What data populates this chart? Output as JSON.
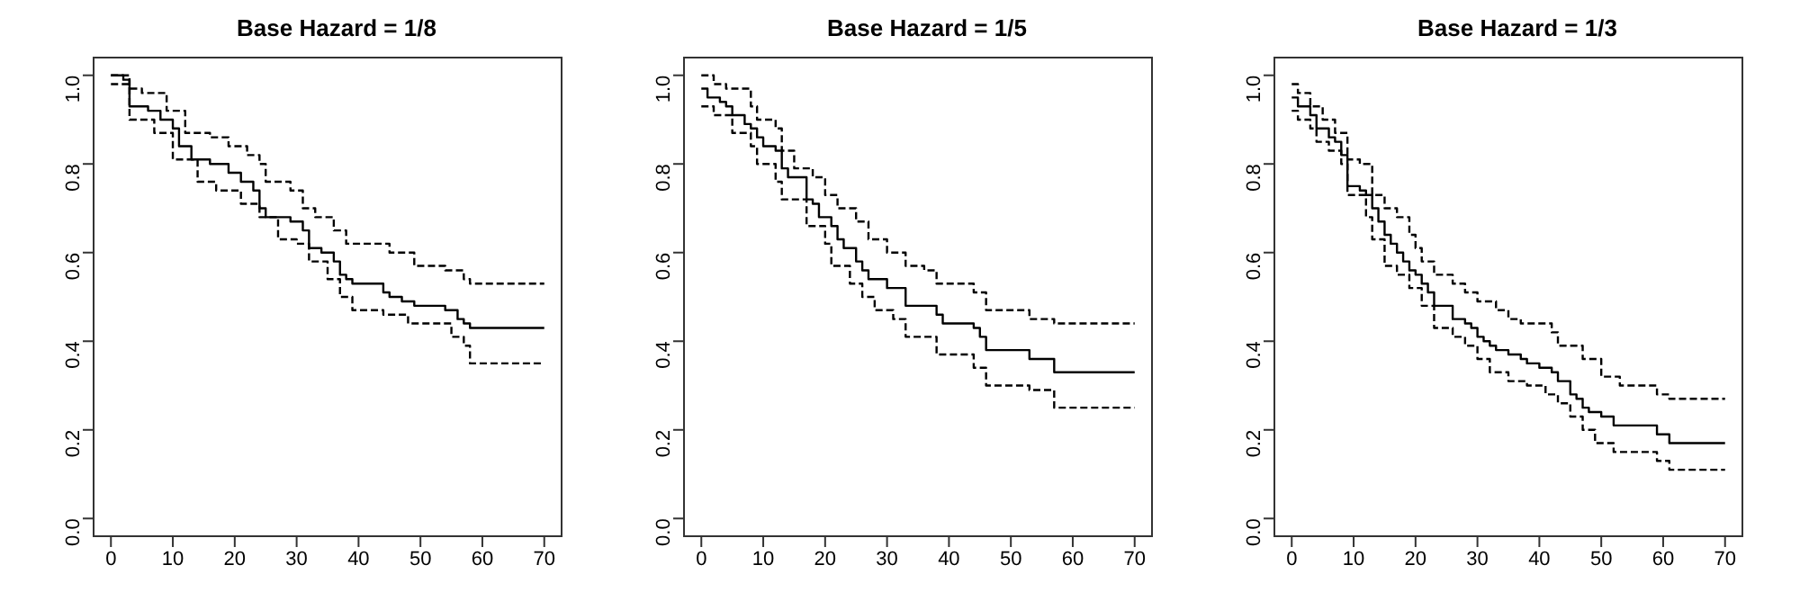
{
  "chart_data": [
    {
      "type": "step",
      "title": "Base Hazard = 1/8",
      "xlim": [
        -2.8,
        72.8
      ],
      "ylim": [
        -0.04,
        1.04
      ],
      "xticks": [
        0,
        10,
        20,
        30,
        40,
        50,
        60,
        70
      ],
      "yticks": [
        {
          "value": 0,
          "label": "0.0"
        },
        {
          "value": 0.2,
          "label": "0.2"
        },
        {
          "value": 0.4,
          "label": "0.4"
        },
        {
          "value": 0.6,
          "label": "0.6"
        },
        {
          "value": 0.8,
          "label": "0.8"
        },
        {
          "value": 1,
          "label": "1.0"
        }
      ],
      "grid": false,
      "legend": false,
      "marker": "none",
      "series": [
        {
          "color": "#000000",
          "line_style": "solid",
          "x": [
            0,
            2,
            3,
            6,
            8,
            10,
            11,
            13,
            16,
            19,
            21,
            23,
            24,
            25,
            29,
            31,
            32,
            34,
            36,
            37,
            38,
            39,
            44,
            45,
            47,
            49,
            54,
            56,
            57,
            58,
            70
          ],
          "values": [
            1,
            0.99,
            0.93,
            0.92,
            0.9,
            0.88,
            0.84,
            0.81,
            0.8,
            0.78,
            0.76,
            0.74,
            0.7,
            0.68,
            0.67,
            0.65,
            0.61,
            0.6,
            0.58,
            0.55,
            0.54,
            0.53,
            0.51,
            0.5,
            0.49,
            0.48,
            0.47,
            0.45,
            0.44,
            0.43,
            0.43
          ]
        },
        {
          "color": "#000000",
          "line_style": "dashed",
          "x": [
            0,
            3,
            5,
            9,
            12,
            16,
            19,
            22,
            24,
            25,
            29,
            31,
            33,
            36,
            38,
            45,
            49,
            54,
            57,
            58,
            70
          ],
          "values": [
            1,
            0.97,
            0.96,
            0.92,
            0.87,
            0.86,
            0.84,
            0.82,
            0.8,
            0.76,
            0.74,
            0.7,
            0.68,
            0.65,
            0.62,
            0.6,
            0.57,
            0.56,
            0.54,
            0.53,
            0.53
          ]
        },
        {
          "color": "#000000",
          "line_style": "dashed",
          "x": [
            0,
            3,
            7,
            10,
            14,
            17,
            21,
            24,
            27,
            30,
            32,
            35,
            37,
            39,
            44,
            48,
            55,
            57,
            58,
            70
          ],
          "values": [
            0.98,
            0.9,
            0.87,
            0.81,
            0.76,
            0.74,
            0.71,
            0.68,
            0.63,
            0.62,
            0.58,
            0.54,
            0.5,
            0.47,
            0.46,
            0.44,
            0.41,
            0.39,
            0.35,
            0.35
          ]
        }
      ]
    },
    {
      "type": "step",
      "title": "Base Hazard = 1/5",
      "xlim": [
        -2.8,
        72.8
      ],
      "ylim": [
        -0.04,
        1.04
      ],
      "xticks": [
        0,
        10,
        20,
        30,
        40,
        50,
        60,
        70
      ],
      "yticks": [
        {
          "value": 0,
          "label": "0.0"
        },
        {
          "value": 0.2,
          "label": "0.2"
        },
        {
          "value": 0.4,
          "label": "0.4"
        },
        {
          "value": 0.6,
          "label": "0.6"
        },
        {
          "value": 0.8,
          "label": "0.8"
        },
        {
          "value": 1,
          "label": "1.0"
        }
      ],
      "grid": false,
      "legend": false,
      "marker": "none",
      "series": [
        {
          "color": "#000000",
          "line_style": "solid",
          "x": [
            0,
            1,
            3,
            4,
            5,
            7,
            8,
            9,
            10,
            12,
            13,
            14,
            17,
            18,
            19,
            21,
            22,
            23,
            25,
            26,
            27,
            30,
            33,
            34,
            38,
            39,
            44,
            45,
            46,
            53,
            57,
            70
          ],
          "values": [
            0.97,
            0.95,
            0.94,
            0.93,
            0.91,
            0.89,
            0.88,
            0.86,
            0.84,
            0.83,
            0.79,
            0.77,
            0.72,
            0.71,
            0.68,
            0.66,
            0.63,
            0.61,
            0.58,
            0.56,
            0.54,
            0.52,
            0.48,
            0.48,
            0.46,
            0.44,
            0.43,
            0.41,
            0.38,
            0.36,
            0.33,
            0.33
          ]
        },
        {
          "color": "#000000",
          "line_style": "dashed",
          "x": [
            0,
            2,
            4,
            8,
            9,
            12,
            13,
            15,
            18,
            20,
            22,
            25,
            27,
            30,
            33,
            36,
            38,
            44,
            46,
            53,
            57,
            70
          ],
          "values": [
            1,
            0.98,
            0.97,
            0.93,
            0.9,
            0.88,
            0.83,
            0.79,
            0.77,
            0.73,
            0.7,
            0.67,
            0.63,
            0.6,
            0.57,
            0.56,
            0.53,
            0.51,
            0.47,
            0.45,
            0.44,
            0.44
          ]
        },
        {
          "color": "#000000",
          "line_style": "dashed",
          "x": [
            0,
            2,
            5,
            8,
            9,
            12,
            13,
            17,
            20,
            21,
            24,
            26,
            28,
            31,
            33,
            38,
            41,
            44,
            46,
            53,
            57,
            70
          ],
          "values": [
            0.93,
            0.91,
            0.87,
            0.84,
            0.8,
            0.76,
            0.72,
            0.66,
            0.62,
            0.57,
            0.53,
            0.5,
            0.47,
            0.45,
            0.41,
            0.37,
            0.37,
            0.34,
            0.3,
            0.29,
            0.25,
            0.25
          ]
        }
      ]
    },
    {
      "type": "step",
      "title": "Base Hazard = 1/3",
      "xlim": [
        -2.8,
        72.8
      ],
      "ylim": [
        -0.04,
        1.04
      ],
      "xticks": [
        0,
        10,
        20,
        30,
        40,
        50,
        60,
        70
      ],
      "yticks": [
        {
          "value": 0,
          "label": "0.0"
        },
        {
          "value": 0.2,
          "label": "0.2"
        },
        {
          "value": 0.4,
          "label": "0.4"
        },
        {
          "value": 0.6,
          "label": "0.6"
        },
        {
          "value": 0.8,
          "label": "0.8"
        },
        {
          "value": 1,
          "label": "1.0"
        }
      ],
      "grid": false,
      "legend": false,
      "marker": "none",
      "series": [
        {
          "color": "#000000",
          "line_style": "solid",
          "x": [
            0,
            1,
            3,
            4,
            6,
            7,
            8,
            9,
            11,
            12,
            13,
            14,
            15,
            16,
            17,
            18,
            19,
            20,
            21,
            22,
            23,
            26,
            28,
            29,
            30,
            31,
            32,
            33,
            35,
            37,
            38,
            40,
            42,
            43,
            45,
            46,
            47,
            48,
            50,
            52,
            59,
            61,
            70
          ],
          "values": [
            0.95,
            0.93,
            0.91,
            0.88,
            0.86,
            0.85,
            0.82,
            0.75,
            0.74,
            0.73,
            0.7,
            0.67,
            0.64,
            0.62,
            0.6,
            0.58,
            0.56,
            0.55,
            0.53,
            0.51,
            0.48,
            0.45,
            0.44,
            0.43,
            0.41,
            0.4,
            0.39,
            0.38,
            0.37,
            0.36,
            0.35,
            0.34,
            0.33,
            0.31,
            0.28,
            0.27,
            0.25,
            0.24,
            0.23,
            0.21,
            0.19,
            0.17,
            0.17
          ]
        },
        {
          "color": "#000000",
          "line_style": "dashed",
          "x": [
            0,
            1,
            3,
            5,
            7,
            9,
            11,
            13,
            15,
            17,
            19,
            20,
            21,
            23,
            26,
            28,
            30,
            33,
            35,
            37,
            42,
            43,
            47,
            50,
            53,
            59,
            61,
            70
          ],
          "values": [
            0.98,
            0.96,
            0.93,
            0.9,
            0.87,
            0.81,
            0.8,
            0.73,
            0.7,
            0.68,
            0.64,
            0.61,
            0.58,
            0.55,
            0.53,
            0.51,
            0.49,
            0.47,
            0.45,
            0.44,
            0.42,
            0.39,
            0.36,
            0.32,
            0.3,
            0.28,
            0.27,
            0.27
          ]
        },
        {
          "color": "#000000",
          "line_style": "dashed",
          "x": [
            0,
            1,
            3,
            4,
            6,
            8,
            9,
            12,
            13,
            15,
            17,
            19,
            21,
            23,
            26,
            28,
            30,
            32,
            35,
            38,
            41,
            43,
            45,
            47,
            49,
            52,
            59,
            61,
            70
          ],
          "values": [
            0.92,
            0.9,
            0.88,
            0.85,
            0.83,
            0.8,
            0.73,
            0.68,
            0.63,
            0.57,
            0.55,
            0.52,
            0.48,
            0.43,
            0.41,
            0.39,
            0.36,
            0.33,
            0.31,
            0.3,
            0.28,
            0.26,
            0.23,
            0.2,
            0.17,
            0.15,
            0.13,
            0.11,
            0.11
          ]
        }
      ]
    }
  ]
}
